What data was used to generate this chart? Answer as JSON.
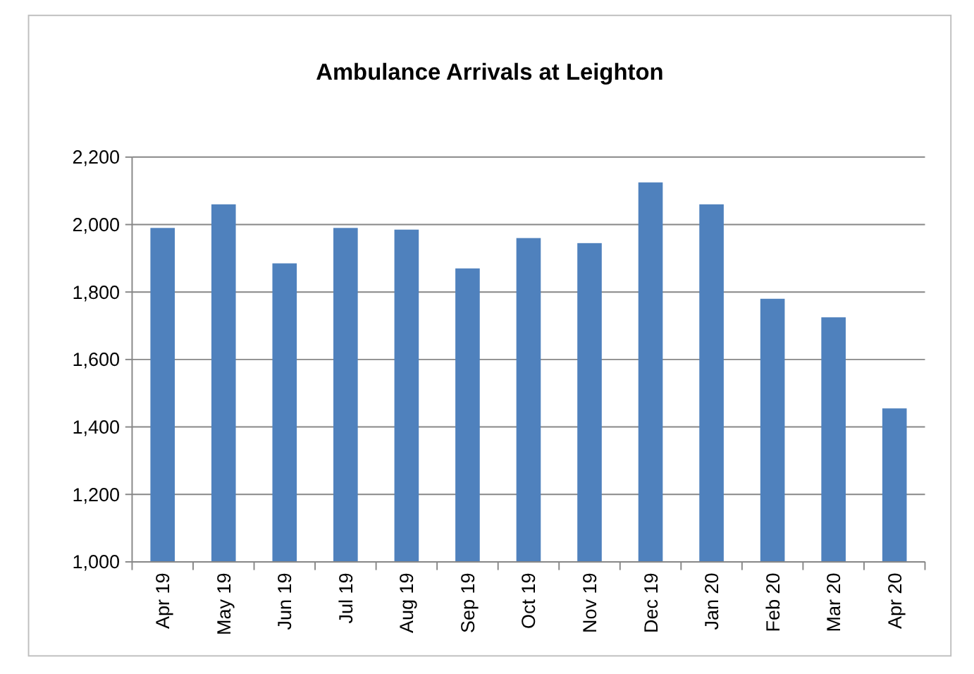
{
  "chart_data": {
    "type": "bar",
    "title": "Ambulance Arrivals at Leighton",
    "categories": [
      "Apr 19",
      "May 19",
      "Jun 19",
      "Jul 19",
      "Aug 19",
      "Sep 19",
      "Oct 19",
      "Nov 19",
      "Dec 19",
      "Jan 20",
      "Feb 20",
      "Mar 20",
      "Apr 20"
    ],
    "values": [
      1990,
      2060,
      1885,
      1990,
      1985,
      1870,
      1960,
      1945,
      2125,
      2060,
      1780,
      1725,
      1455
    ],
    "color": "#4f81bd",
    "ylim": [
      1000,
      2200
    ],
    "yticks": [
      {
        "value": 1000,
        "label": "1,000"
      },
      {
        "value": 1200,
        "label": "1,200"
      },
      {
        "value": 1400,
        "label": "1,400"
      },
      {
        "value": 1600,
        "label": "1,600"
      },
      {
        "value": 1800,
        "label": "1,800"
      },
      {
        "value": 2000,
        "label": "2,000"
      },
      {
        "value": 2200,
        "label": "2,200"
      }
    ],
    "grid": "y"
  }
}
